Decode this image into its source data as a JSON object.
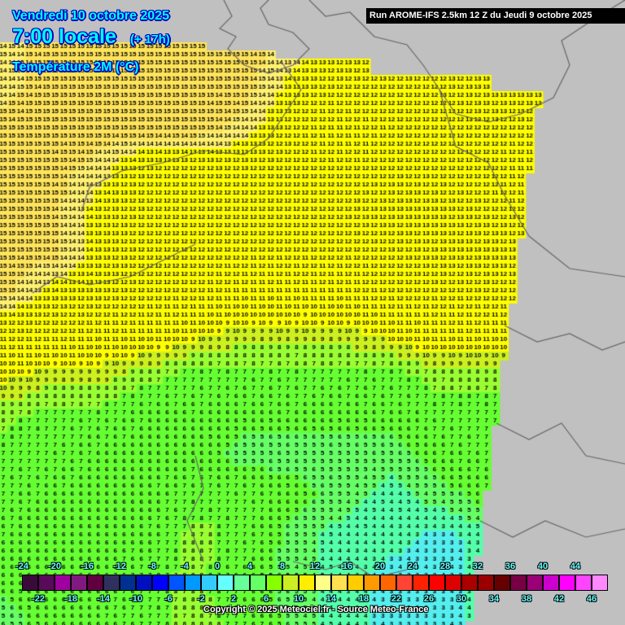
{
  "header": {
    "date": "Vendredi 10 octobre 2025",
    "time": "7:00 locale",
    "lead": "(+ 17h)",
    "variable": "Température 2M (°C)",
    "run": "Run AROME-IFS 2.5km 12 Z du Jeudi 9 octobre 2025"
  },
  "footer": {
    "copyright": "Copyright © 2025 Meteociel.fr - Source Meteo-France"
  },
  "legend": {
    "values": [
      -24,
      -22,
      -20,
      -18,
      -16,
      -14,
      -12,
      -10,
      -8,
      -6,
      -4,
      -2,
      0,
      2,
      4,
      6,
      8,
      10,
      12,
      14,
      16,
      18,
      20,
      22,
      24,
      26,
      28,
      30,
      32,
      34,
      36,
      38,
      40,
      42,
      44,
      46
    ],
    "colors": [
      "#3a0a3a",
      "#5a0a5a",
      "#a000a0",
      "#801a80",
      "#600040",
      "#303060",
      "#003090",
      "#0010c0",
      "#0000ff",
      "#0055ff",
      "#0099ff",
      "#33ccff",
      "#66ffff",
      "#66ff99",
      "#66ff66",
      "#88ff00",
      "#ccee22",
      "#ffee00",
      "#ffff88",
      "#ffe050",
      "#ffcc00",
      "#ff9900",
      "#ff6600",
      "#ff4433",
      "#ff2200",
      "#ff0000",
      "#dd0000",
      "#aa0000",
      "#990000",
      "#660000",
      "#770044",
      "#990077",
      "#cc00cc",
      "#ff00ff",
      "#ff44ff",
      "#ff88ff"
    ]
  },
  "map": {
    "land_color": "#c0c0c0",
    "border_color": "#666666",
    "temperature_field_c": [
      [
        14,
        15,
        15,
        15,
        15,
        15,
        14,
        13,
        13,
        12,
        13,
        13
      ],
      [
        14,
        15,
        15,
        15,
        15,
        15,
        13,
        12,
        12,
        12,
        13,
        13
      ],
      [
        15,
        15,
        15,
        15,
        15,
        14,
        12,
        11,
        12,
        12,
        12,
        12
      ],
      [
        15,
        15,
        14,
        12,
        12,
        12,
        12,
        12,
        12,
        12,
        12,
        11
      ],
      [
        15,
        15,
        13,
        12,
        12,
        12,
        12,
        12,
        13,
        13,
        12,
        12
      ],
      [
        15,
        15,
        13,
        12,
        12,
        12,
        12,
        12,
        12,
        13,
        13,
        13
      ],
      [
        15,
        13,
        13,
        12,
        12,
        11,
        11,
        11,
        12,
        12,
        12,
        12
      ],
      [
        12,
        12,
        11,
        11,
        10,
        9,
        9,
        9,
        10,
        11,
        11,
        11
      ],
      [
        10,
        9,
        9,
        8,
        7,
        7,
        7,
        7,
        7,
        8,
        8,
        8
      ],
      [
        8,
        7,
        7,
        6,
        6,
        6,
        6,
        6,
        6,
        7,
        7,
        7
      ],
      [
        7,
        7,
        6,
        6,
        6,
        5,
        5,
        5,
        5,
        6,
        7,
        7
      ],
      [
        7,
        6,
        6,
        6,
        7,
        7,
        6,
        5,
        4,
        5,
        6,
        6
      ],
      [
        6,
        6,
        6,
        6,
        8,
        7,
        5,
        4,
        4,
        3,
        4,
        4
      ],
      [
        6,
        6,
        6,
        7,
        8,
        6,
        5,
        4,
        3,
        3,
        4,
        4
      ],
      [
        5,
        6,
        6,
        7,
        8,
        7,
        5,
        4,
        3,
        3,
        4,
        4
      ]
    ]
  }
}
